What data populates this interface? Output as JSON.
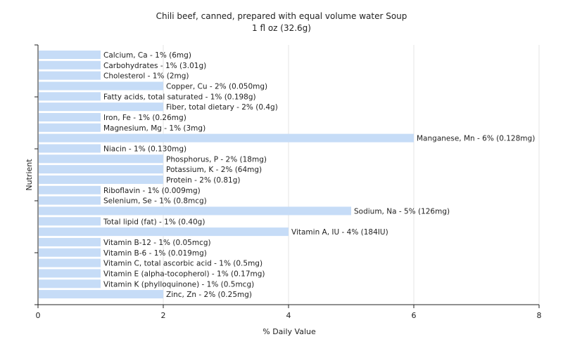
{
  "chart_data": {
    "type": "bar",
    "orientation": "horizontal",
    "title": "Chili beef, canned, prepared with equal volume water Soup",
    "subtitle": "1 fl oz (32.6g)",
    "xlabel": "% Daily Value",
    "ylabel": "Nutrient",
    "xlim": [
      0,
      8
    ],
    "xticks": [
      "0",
      "2",
      "4",
      "6",
      "8"
    ],
    "grid": "vertical",
    "bar_color": "#c6dcf7",
    "bars": [
      {
        "label": "Calcium, Ca - 1% (6mg)",
        "value": 1
      },
      {
        "label": "Carbohydrates - 1% (3.01g)",
        "value": 1
      },
      {
        "label": "Cholesterol - 1% (2mg)",
        "value": 1
      },
      {
        "label": "Copper, Cu - 2% (0.050mg)",
        "value": 2
      },
      {
        "label": "Fatty acids, total saturated - 1% (0.198g)",
        "value": 1
      },
      {
        "label": "Fiber, total dietary - 2% (0.4g)",
        "value": 2
      },
      {
        "label": "Iron, Fe - 1% (0.26mg)",
        "value": 1
      },
      {
        "label": "Magnesium, Mg - 1% (3mg)",
        "value": 1
      },
      {
        "label": "Manganese, Mn - 6% (0.128mg)",
        "value": 6
      },
      {
        "label": "Niacin - 1% (0.130mg)",
        "value": 1
      },
      {
        "label": "Phosphorus, P - 2% (18mg)",
        "value": 2
      },
      {
        "label": "Potassium, K - 2% (64mg)",
        "value": 2
      },
      {
        "label": "Protein - 2% (0.81g)",
        "value": 2
      },
      {
        "label": "Riboflavin - 1% (0.009mg)",
        "value": 1
      },
      {
        "label": "Selenium, Se - 1% (0.8mcg)",
        "value": 1
      },
      {
        "label": "Sodium, Na - 5% (126mg)",
        "value": 5
      },
      {
        "label": "Total lipid (fat) - 1% (0.40g)",
        "value": 1
      },
      {
        "label": "Vitamin A, IU - 4% (184IU)",
        "value": 4
      },
      {
        "label": "Vitamin B-12 - 1% (0.05mcg)",
        "value": 1
      },
      {
        "label": "Vitamin B-6 - 1% (0.019mg)",
        "value": 1
      },
      {
        "label": "Vitamin C, total ascorbic acid - 1% (0.5mg)",
        "value": 1
      },
      {
        "label": "Vitamin E (alpha-tocopherol) - 1% (0.17mg)",
        "value": 1
      },
      {
        "label": "Vitamin K (phylloquinone) - 1% (0.5mcg)",
        "value": 1
      },
      {
        "label": "Zinc, Zn - 2% (0.25mg)",
        "value": 2
      }
    ]
  }
}
